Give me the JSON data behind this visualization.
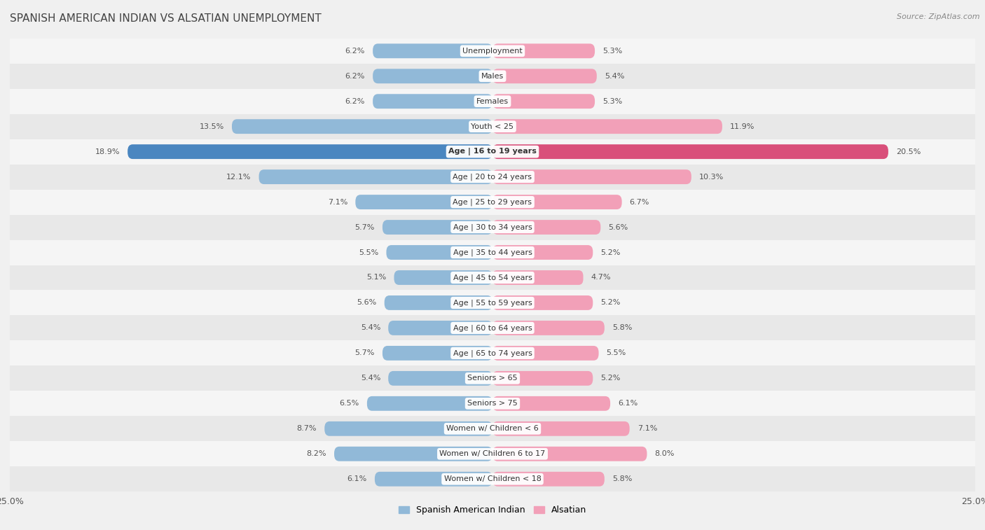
{
  "title": "SPANISH AMERICAN INDIAN VS ALSATIAN UNEMPLOYMENT",
  "source": "Source: ZipAtlas.com",
  "categories": [
    "Unemployment",
    "Males",
    "Females",
    "Youth < 25",
    "Age | 16 to 19 years",
    "Age | 20 to 24 years",
    "Age | 25 to 29 years",
    "Age | 30 to 34 years",
    "Age | 35 to 44 years",
    "Age | 45 to 54 years",
    "Age | 55 to 59 years",
    "Age | 60 to 64 years",
    "Age | 65 to 74 years",
    "Seniors > 65",
    "Seniors > 75",
    "Women w/ Children < 6",
    "Women w/ Children 6 to 17",
    "Women w/ Children < 18"
  ],
  "left_values": [
    6.2,
    6.2,
    6.2,
    13.5,
    18.9,
    12.1,
    7.1,
    5.7,
    5.5,
    5.1,
    5.6,
    5.4,
    5.7,
    5.4,
    6.5,
    8.7,
    8.2,
    6.1
  ],
  "right_values": [
    5.3,
    5.4,
    5.3,
    11.9,
    20.5,
    10.3,
    6.7,
    5.6,
    5.2,
    4.7,
    5.2,
    5.8,
    5.5,
    5.2,
    6.1,
    7.1,
    8.0,
    5.8
  ],
  "left_color": "#91b9d8",
  "right_color": "#f2a0b8",
  "left_highlight_color": "#4a86c0",
  "right_highlight_color": "#d94f7a",
  "highlight_indices": [
    4
  ],
  "row_colors": [
    "#f5f5f5",
    "#e8e8e8"
  ],
  "background_color": "#f0f0f0",
  "xlim": 25.0,
  "bar_height": 0.58,
  "legend_left_label": "Spanish American Indian",
  "legend_right_label": "Alsatian",
  "title_fontsize": 11,
  "source_fontsize": 8,
  "label_fontsize": 8,
  "value_fontsize": 8
}
